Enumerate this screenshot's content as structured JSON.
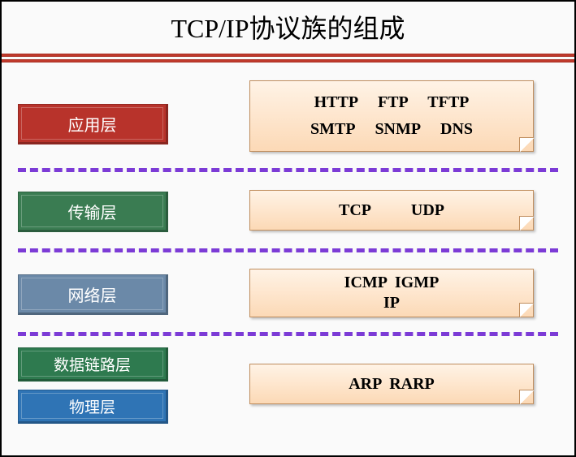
{
  "title": "TCP/IP协议族的组成",
  "layers": {
    "app": {
      "label": "应用层",
      "bg": "#b8332b"
    },
    "trans": {
      "label": "传输层",
      "bg": "#3a7c52"
    },
    "net": {
      "label": "网络层",
      "bg": "#6b89a8"
    },
    "datalink": {
      "label": "数据链路层",
      "bg": "#2e7a4f"
    },
    "phys": {
      "label": "物理层",
      "bg": "#2f74b5"
    }
  },
  "protocols": {
    "app_line1": "HTTP     FTP     TFTP",
    "app_line2": "SMTP     SNMP     DNS",
    "trans": "TCP          UDP",
    "net_line1": "ICMP  IGMP",
    "net_line2": "IP",
    "link": "ARP  RARP"
  },
  "style": {
    "sep_color": "#7c3bd6",
    "title_fontsize": 32,
    "layer_fontsize": 20,
    "protocol_fontsize": 20,
    "red_bar_color": "#c0392b",
    "protocol_bg_top": "#fff3e6",
    "protocol_bg_bottom": "#fcd9b6",
    "protocol_border": "#c08e5e"
  }
}
